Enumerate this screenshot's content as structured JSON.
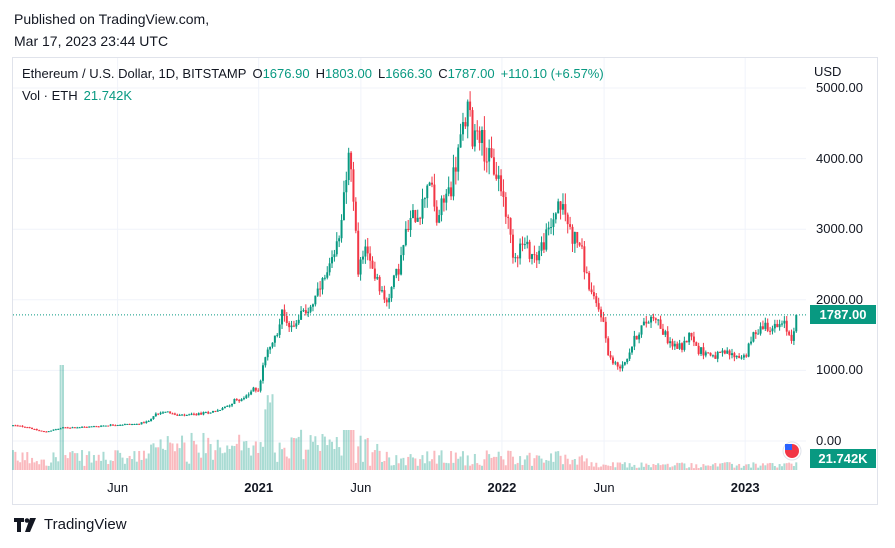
{
  "header": {
    "published": "Published on TradingView.com,",
    "timestamp": "Mar 17, 2023 23:44 UTC"
  },
  "legend": {
    "symbol": "Ethereum / U.S. Dollar, 1D, BITSTAMP",
    "open_label": "O",
    "open": "1676.90",
    "high_label": "H",
    "high": "1803.00",
    "low_label": "L",
    "low": "1666.30",
    "close_label": "C",
    "close": "1787.00",
    "change": "+110.10 (+6.57%)",
    "vol_label": "Vol · ETH",
    "vol_value": "21.742K"
  },
  "axis": {
    "currency": "USD",
    "price_tag": "1787.00",
    "vol_tag": "21.742K"
  },
  "footer": {
    "brand": "TradingView"
  },
  "colors": {
    "up": "#089981",
    "down": "#f23645",
    "grid": "#f0f3fa"
  },
  "chart_data": {
    "type": "candlestick",
    "title": "Ethereum / U.S. Dollar, 1D, BITSTAMP",
    "ylabel": "USD",
    "ylim": [
      0,
      5000
    ],
    "yticks": [
      {
        "v": 5000,
        "label": "5000.00"
      },
      {
        "v": 4000,
        "label": "4000.00"
      },
      {
        "v": 3000,
        "label": "3000.00"
      },
      {
        "v": 2000,
        "label": "2000.00"
      },
      {
        "v": 1000,
        "label": "1000.00"
      },
      {
        "v": 0,
        "label": "0.00"
      }
    ],
    "xticks": [
      {
        "t": 2020.42,
        "label": "Jun",
        "bold": false
      },
      {
        "t": 2021.0,
        "label": "2021",
        "bold": true
      },
      {
        "t": 2021.42,
        "label": "Jun",
        "bold": false
      },
      {
        "t": 2022.0,
        "label": "2022",
        "bold": true
      },
      {
        "t": 2022.42,
        "label": "Jun",
        "bold": false
      },
      {
        "t": 2023.0,
        "label": "2023",
        "bold": true
      }
    ],
    "xlim": [
      2019.99,
      2023.25
    ],
    "last_price": 1787.0,
    "price_path": [
      [
        2019.99,
        220
      ],
      [
        2020.05,
        200
      ],
      [
        2020.08,
        160
      ],
      [
        2020.12,
        130
      ],
      [
        2020.16,
        160
      ],
      [
        2020.2,
        190
      ],
      [
        2020.3,
        200
      ],
      [
        2020.4,
        230
      ],
      [
        2020.5,
        240
      ],
      [
        2020.55,
        280
      ],
      [
        2020.58,
        390
      ],
      [
        2020.62,
        430
      ],
      [
        2020.66,
        360
      ],
      [
        2020.7,
        360
      ],
      [
        2020.75,
        380
      ],
      [
        2020.8,
        410
      ],
      [
        2020.85,
        450
      ],
      [
        2020.9,
        570
      ],
      [
        2020.95,
        620
      ],
      [
        2020.98,
        740
      ],
      [
        2021.0,
        730
      ],
      [
        2021.02,
        1100
      ],
      [
        2021.05,
        1350
      ],
      [
        2021.08,
        1600
      ],
      [
        2021.1,
        1850
      ],
      [
        2021.13,
        1600
      ],
      [
        2021.16,
        1750
      ],
      [
        2021.2,
        1850
      ],
      [
        2021.23,
        2000
      ],
      [
        2021.26,
        2200
      ],
      [
        2021.29,
        2400
      ],
      [
        2021.32,
        2700
      ],
      [
        2021.35,
        3500
      ],
      [
        2021.37,
        4150
      ],
      [
        2021.39,
        3300
      ],
      [
        2021.41,
        2400
      ],
      [
        2021.43,
        2700
      ],
      [
        2021.46,
        2500
      ],
      [
        2021.49,
        2300
      ],
      [
        2021.52,
        1950
      ],
      [
        2021.55,
        2200
      ],
      [
        2021.58,
        2500
      ],
      [
        2021.61,
        3000
      ],
      [
        2021.64,
        3200
      ],
      [
        2021.67,
        3300
      ],
      [
        2021.7,
        3800
      ],
      [
        2021.73,
        3100
      ],
      [
        2021.76,
        3400
      ],
      [
        2021.79,
        3600
      ],
      [
        2021.82,
        4100
      ],
      [
        2021.84,
        4400
      ],
      [
        2021.86,
        4700
      ],
      [
        2021.88,
        4300
      ],
      [
        2021.9,
        4500
      ],
      [
        2021.93,
        4100
      ],
      [
        2021.96,
        3900
      ],
      [
        2021.99,
        3700
      ],
      [
        2022.02,
        3200
      ],
      [
        2022.05,
        2600
      ],
      [
        2022.08,
        2800
      ],
      [
        2022.11,
        2700
      ],
      [
        2022.14,
        2600
      ],
      [
        2022.17,
        2800
      ],
      [
        2022.2,
        3000
      ],
      [
        2022.23,
        3400
      ],
      [
        2022.26,
        3200
      ],
      [
        2022.29,
        2900
      ],
      [
        2022.32,
        2800
      ],
      [
        2022.35,
        2300
      ],
      [
        2022.38,
        1950
      ],
      [
        2022.41,
        1800
      ],
      [
        2022.44,
        1200
      ],
      [
        2022.46,
        1100
      ],
      [
        2022.48,
        1050
      ],
      [
        2022.51,
        1150
      ],
      [
        2022.54,
        1400
      ],
      [
        2022.57,
        1600
      ],
      [
        2022.6,
        1700
      ],
      [
        2022.63,
        1800
      ],
      [
        2022.66,
        1550
      ],
      [
        2022.7,
        1350
      ],
      [
        2022.74,
        1330
      ],
      [
        2022.78,
        1550
      ],
      [
        2022.8,
        1300
      ],
      [
        2022.84,
        1250
      ],
      [
        2022.88,
        1200
      ],
      [
        2022.92,
        1250
      ],
      [
        2022.96,
        1200
      ],
      [
        2023.0,
        1200
      ],
      [
        2023.04,
        1550
      ],
      [
        2023.08,
        1650
      ],
      [
        2023.12,
        1600
      ],
      [
        2023.16,
        1650
      ],
      [
        2023.19,
        1450
      ],
      [
        2023.21,
        1790
      ]
    ],
    "volume_note": "daily volume histogram with spikes in Mar 2020, Jan 2021 and May 2021",
    "volume_ylim_label": "0.00"
  }
}
